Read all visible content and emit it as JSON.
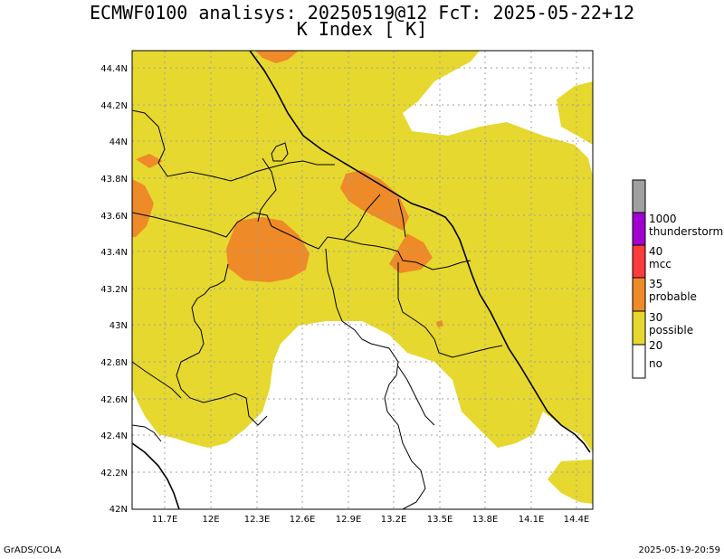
{
  "header": {
    "line1": "ECMWF0100 analisys: 20250519@12 FcT: 2025-05-22+12",
    "line2": "K Index [  K]"
  },
  "map": {
    "lat_labels": [
      "44.4N",
      "44.2N",
      "44N",
      "43.8N",
      "43.6N",
      "43.4N",
      "43.2N",
      "43N",
      "42.8N",
      "42.6N",
      "42.4N",
      "42.2N",
      "42N"
    ],
    "lon_labels": [
      "11.7E",
      "12E",
      "12.3E",
      "12.6E",
      "12.9E",
      "13.2E",
      "13.5E",
      "13.8E",
      "14.1E",
      "14.4E"
    ],
    "colors": {
      "no": "#ffffff",
      "possible": "#e6d82e",
      "probable": "#ef8a28",
      "mcc": "#ff3c3c",
      "thunderstorm": "#a000d0",
      "above": "#a0a0a0"
    }
  },
  "legend": {
    "bins": [
      {
        "threshold": "1000",
        "label": "thunderstorm"
      },
      {
        "threshold": "40",
        "label": "mcc"
      },
      {
        "threshold": "35",
        "label": "probable"
      },
      {
        "threshold": "30",
        "label": "possible"
      },
      {
        "threshold": "20",
        "label": "no"
      }
    ]
  },
  "footer": {
    "left": "GrADS/COLA",
    "right": "2025-05-19-20:59"
  }
}
